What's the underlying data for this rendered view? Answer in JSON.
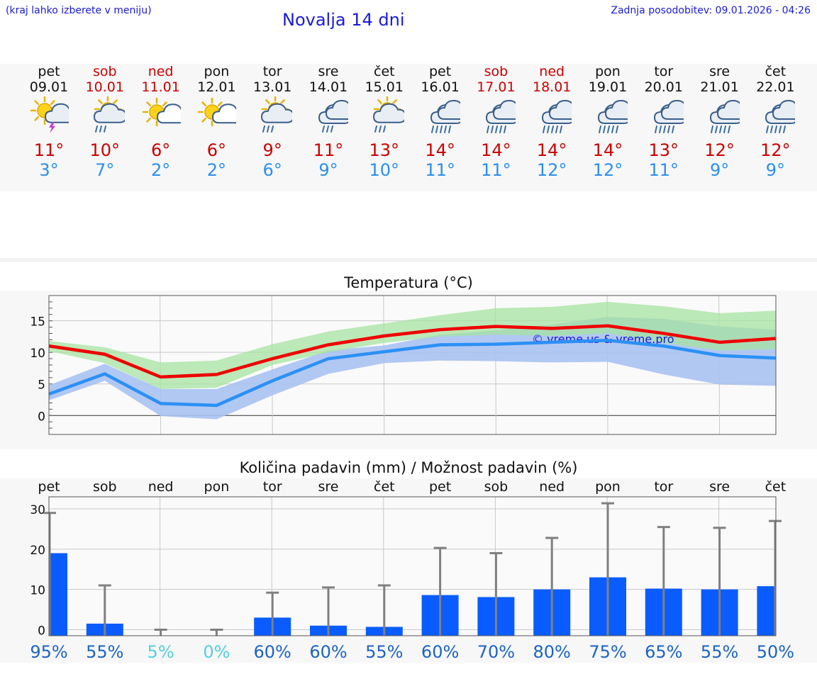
{
  "header": {
    "note": "(kraj lahko izberete v meniju)",
    "title": "Novalja 14 dni",
    "updated": "Zadnja posodobitev: 09.01.2026 - 04:26"
  },
  "days": [
    {
      "name": "pet",
      "date": "09.01",
      "weekend": false,
      "icon": "sun-cloud-thunder-icon",
      "tmax": "11°",
      "tmin": "3°"
    },
    {
      "name": "sob",
      "date": "10.01",
      "weekend": true,
      "icon": "sun-cloud-rain-icon",
      "tmax": "10°",
      "tmin": "7°"
    },
    {
      "name": "ned",
      "date": "11.01",
      "weekend": true,
      "icon": "sun-small-cloud-icon",
      "tmax": "6°",
      "tmin": "2°"
    },
    {
      "name": "pon",
      "date": "12.01",
      "weekend": false,
      "icon": "sun-small-cloud-icon",
      "tmax": "6°",
      "tmin": "2°"
    },
    {
      "name": "tor",
      "date": "13.01",
      "weekend": false,
      "icon": "sun-cloud-rain-icon",
      "tmax": "9°",
      "tmin": "6°"
    },
    {
      "name": "sre",
      "date": "14.01",
      "weekend": false,
      "icon": "cloud-rain-icon",
      "tmax": "11°",
      "tmin": "9°"
    },
    {
      "name": "čet",
      "date": "15.01",
      "weekend": false,
      "icon": "sun-cloud-rain-icon",
      "tmax": "13°",
      "tmin": "10°"
    },
    {
      "name": "pet",
      "date": "16.01",
      "weekend": false,
      "icon": "cloud-heavy-rain-icon",
      "tmax": "14°",
      "tmin": "11°"
    },
    {
      "name": "sob",
      "date": "17.01",
      "weekend": true,
      "icon": "cloud-heavy-rain-icon",
      "tmax": "14°",
      "tmin": "11°"
    },
    {
      "name": "ned",
      "date": "18.01",
      "weekend": true,
      "icon": "cloud-heavy-rain-icon",
      "tmax": "14°",
      "tmin": "12°"
    },
    {
      "name": "pon",
      "date": "19.01",
      "weekend": false,
      "icon": "cloud-heavy-rain-icon",
      "tmax": "14°",
      "tmin": "12°"
    },
    {
      "name": "tor",
      "date": "20.01",
      "weekend": false,
      "icon": "cloud-heavy-rain-icon",
      "tmax": "13°",
      "tmin": "11°"
    },
    {
      "name": "sre",
      "date": "21.01",
      "weekend": false,
      "icon": "cloud-heavy-rain-icon",
      "tmax": "12°",
      "tmin": "9°"
    },
    {
      "name": "čet",
      "date": "22.01",
      "weekend": false,
      "icon": "cloud-heavy-rain-icon",
      "tmax": "12°",
      "tmin": "9°"
    }
  ],
  "colors": {
    "max_line": "#ee0000",
    "min_line": "#2b90f5",
    "max_band": "#a5e3a0",
    "min_band": "#a9c2f2",
    "overlap_band": "#7cc6a8",
    "bar": "#0a5cff",
    "error_bar": "#808080",
    "pct_high": "#1c64c2",
    "pct_low": "#55cfe0",
    "watermark": "#1a1adb"
  },
  "chart_data": [
    {
      "type": "line",
      "title": "Temperatura (°C)",
      "xlabel": "",
      "ylabel": "",
      "ylim": [
        -3,
        19
      ],
      "yticks": [
        0,
        5,
        10,
        15
      ],
      "grid": true,
      "watermark": "© vreme.us & vreme.pro",
      "x": [
        "pet",
        "sob",
        "ned",
        "pon",
        "tor",
        "sre",
        "čet",
        "pet",
        "sob",
        "ned",
        "pon",
        "tor",
        "sre",
        "čet"
      ],
      "series": [
        {
          "name": "max",
          "values": [
            11,
            9.7,
            6.1,
            6.5,
            9,
            11.2,
            12.6,
            13.6,
            14.1,
            13.8,
            14.2,
            13,
            11.6,
            12.2
          ]
        },
        {
          "name": "min",
          "values": [
            3.4,
            6.6,
            1.9,
            1.6,
            5.5,
            9,
            10.1,
            11.2,
            11.3,
            11.6,
            11.9,
            11,
            9.5,
            9.1
          ]
        },
        {
          "name": "max_range_low",
          "values": [
            10.2,
            8.3,
            4.2,
            4.4,
            8,
            10,
            11.5,
            12.5,
            12.8,
            12.6,
            13,
            11.5,
            10.3,
            10.5
          ]
        },
        {
          "name": "max_range_high",
          "values": [
            11.8,
            10.8,
            8.4,
            8.7,
            11.3,
            13.3,
            14.6,
            15.9,
            17,
            17.2,
            18,
            17.3,
            16.2,
            16.6
          ]
        },
        {
          "name": "min_range_low",
          "values": [
            2.4,
            5.5,
            -0.1,
            -0.6,
            3.2,
            6.6,
            8.3,
            8.7,
            8.6,
            8.4,
            8.5,
            6.5,
            4.9,
            4.7
          ]
        },
        {
          "name": "min_range_high",
          "values": [
            4.8,
            8.2,
            4.2,
            4.2,
            7.3,
            10.3,
            11.1,
            12.8,
            13.5,
            14.4,
            15.6,
            15.3,
            14.1,
            13.6
          ]
        }
      ]
    },
    {
      "type": "bar",
      "title": "Količina padavin (mm) / Možnost padavin (%)",
      "ylim": [
        -1.5,
        33
      ],
      "yticks": [
        0,
        10,
        20,
        30
      ],
      "grid": true,
      "categories": [
        "pet",
        "sob",
        "ned",
        "pon",
        "tor",
        "sre",
        "čet",
        "pet",
        "sob",
        "ned",
        "pon",
        "tor",
        "sre",
        "čet"
      ],
      "values": [
        19,
        1.5,
        0,
        0,
        3,
        1,
        0.7,
        8.6,
        8.1,
        10,
        13,
        10.2,
        10,
        10.8
      ],
      "error_max": [
        29,
        11,
        0,
        0,
        9.2,
        10.5,
        11,
        20.3,
        19,
        22.8,
        31.4,
        25.5,
        25.3,
        27
      ],
      "probability": [
        "95%",
        "55%",
        "5%",
        "0%",
        "60%",
        "60%",
        "55%",
        "60%",
        "70%",
        "80%",
        "75%",
        "65%",
        "55%",
        "50%"
      ],
      "probability_low": [
        false,
        false,
        true,
        true,
        false,
        false,
        false,
        false,
        false,
        false,
        false,
        false,
        false,
        false
      ]
    }
  ]
}
